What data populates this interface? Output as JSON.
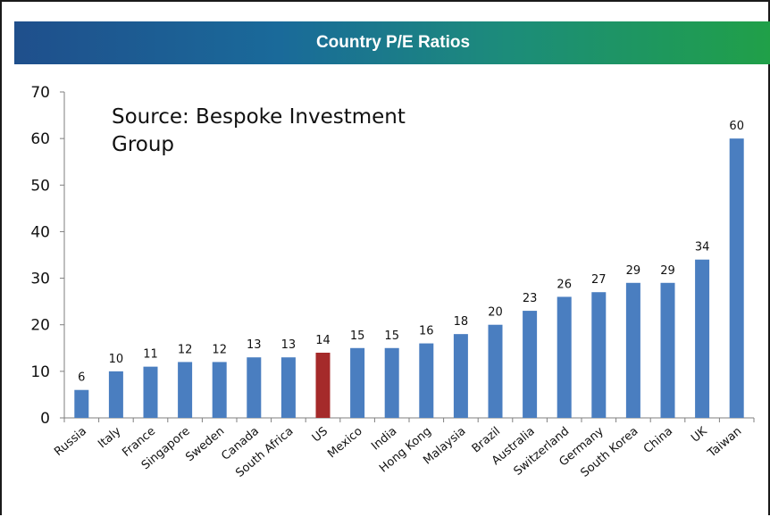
{
  "chart_data": {
    "type": "bar",
    "title": "Country P/E Ratios",
    "annotation": "Source: Bespoke Investment Group",
    "categories": [
      "Russia",
      "Italy",
      "France",
      "Singapore",
      "Sweden",
      "Canada",
      "South Africa",
      "US",
      "Mexico",
      "India",
      "Hong Kong",
      "Malaysia",
      "Brazil",
      "Australia",
      "Switzerland",
      "Germany",
      "South Korea",
      "China",
      "UK",
      "Taiwan"
    ],
    "values": [
      6,
      10,
      11,
      12,
      12,
      13,
      13,
      14,
      15,
      15,
      16,
      18,
      20,
      23,
      26,
      27,
      29,
      29,
      34,
      60
    ],
    "data_labels": [
      "6",
      "10",
      "11",
      "12",
      "12",
      "13",
      "13",
      "14",
      "15",
      "15",
      "16",
      "18",
      "20",
      "23",
      "26",
      "27",
      "29",
      "29",
      "34",
      "60"
    ],
    "highlight_category": "US",
    "colors": {
      "bar": "#4a7ec0",
      "highlight": "#a52a2a"
    },
    "yticks": [
      0,
      10,
      20,
      30,
      40,
      50,
      60,
      70
    ],
    "ylim": [
      0,
      70
    ],
    "grid": false,
    "legend": "none"
  }
}
